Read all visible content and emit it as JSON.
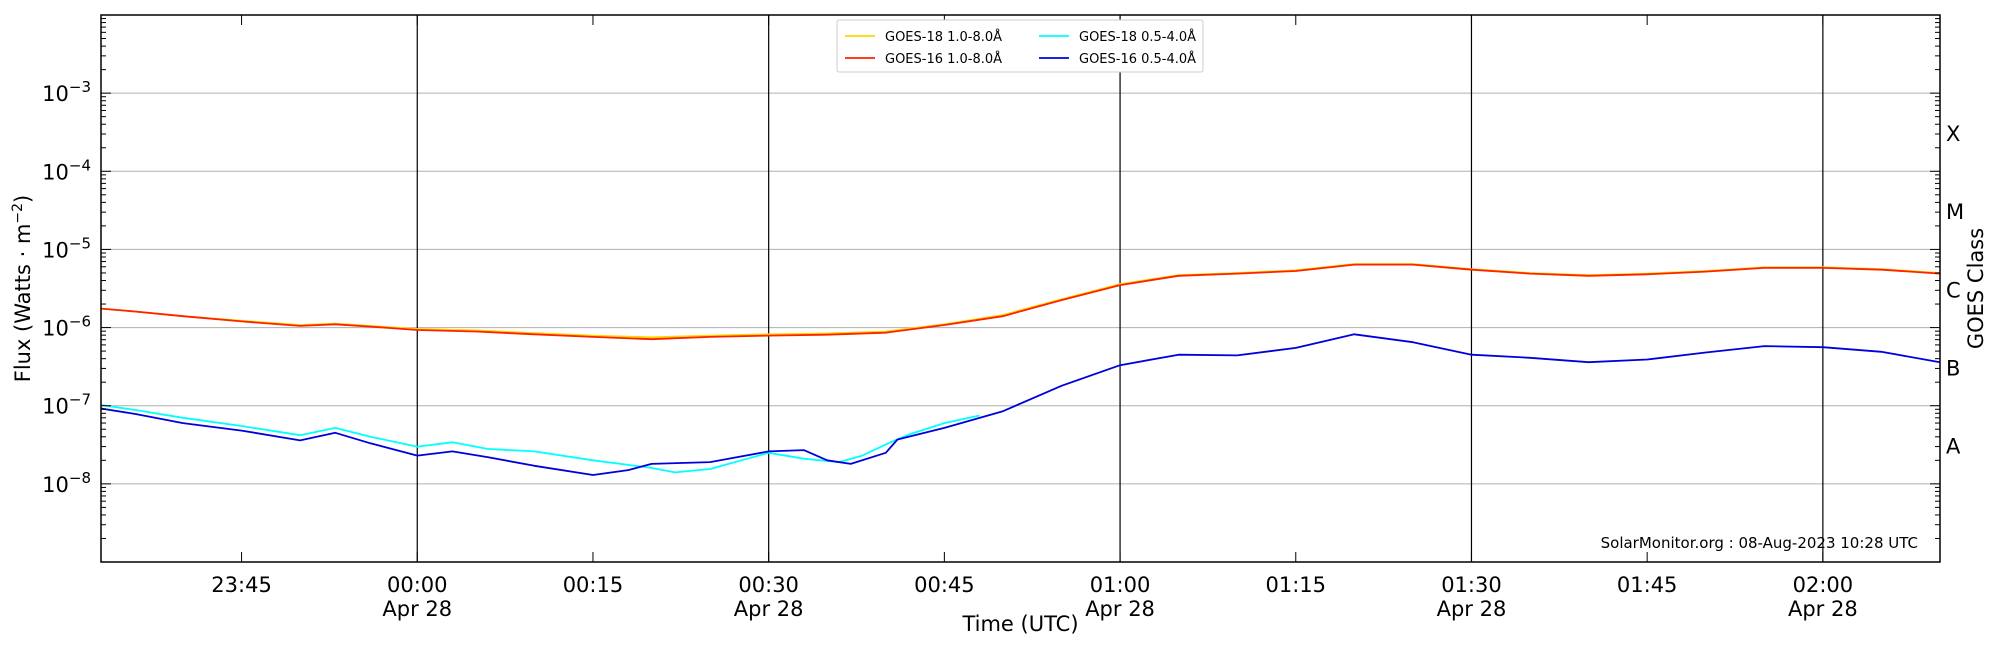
{
  "chart_data": {
    "type": "line",
    "title": "",
    "xlabel": "Time (UTC)",
    "ylabel": "Flux (Watts · m",
    "ylabel_sup": "−2",
    "ylabel_close": ")",
    "ylabel_right": "GOES Class",
    "yscale": "log",
    "ylim": [
      1e-09,
      0.01
    ],
    "xlim": [
      "2023-04-27T23:33:00",
      "2023-04-28T02:10:00"
    ],
    "y_ticks": [
      {
        "value": 1e-08,
        "base": "10",
        "exp": "−8"
      },
      {
        "value": 1e-07,
        "base": "10",
        "exp": "−7"
      },
      {
        "value": 1e-06,
        "base": "10",
        "exp": "−6"
      },
      {
        "value": 1e-05,
        "base": "10",
        "exp": "−5"
      },
      {
        "value": 0.0001,
        "base": "10",
        "exp": "−4"
      },
      {
        "value": 0.001,
        "base": "10",
        "exp": "−3"
      }
    ],
    "x_ticks": [
      {
        "t": "2023-04-27T23:45:00",
        "label": "23:45",
        "sub": ""
      },
      {
        "t": "2023-04-28T00:00:00",
        "label": "00:00",
        "sub": "Apr 28"
      },
      {
        "t": "2023-04-28T00:15:00",
        "label": "00:15",
        "sub": ""
      },
      {
        "t": "2023-04-28T00:30:00",
        "label": "00:30",
        "sub": "Apr 28"
      },
      {
        "t": "2023-04-28T00:45:00",
        "label": "00:45",
        "sub": ""
      },
      {
        "t": "2023-04-28T01:00:00",
        "label": "01:00",
        "sub": "Apr 28"
      },
      {
        "t": "2023-04-28T01:15:00",
        "label": "01:15",
        "sub": ""
      },
      {
        "t": "2023-04-28T01:30:00",
        "label": "01:30",
        "sub": "Apr 28"
      },
      {
        "t": "2023-04-28T01:45:00",
        "label": "01:45",
        "sub": ""
      },
      {
        "t": "2023-04-28T02:00:00",
        "label": "02:00",
        "sub": "Apr 28"
      }
    ],
    "vlines": [
      "2023-04-28T00:00:00",
      "2023-04-28T00:30:00",
      "2023-04-28T01:00:00",
      "2023-04-28T01:30:00",
      "2023-04-28T02:00:00"
    ],
    "grid": "horizontal",
    "goes_classes": [
      {
        "label": "A",
        "value": 3e-08
      },
      {
        "label": "B",
        "value": 3e-07
      },
      {
        "label": "C",
        "value": 3e-06
      },
      {
        "label": "M",
        "value": 3e-05
      },
      {
        "label": "X",
        "value": 0.0003
      }
    ],
    "legend": {
      "placement": "top-center"
    },
    "credit": "SolarMonitor.org : 08-Aug-2023 10:28 UTC",
    "series": [
      {
        "name": "GOES-18 1.0-8.0Å",
        "color": "#ffd700",
        "points": [
          [
            "2023-04-27T23:33:00",
            1.75e-06
          ],
          [
            "2023-04-27T23:36:00",
            1.6e-06
          ],
          [
            "2023-04-27T23:40:00",
            1.4e-06
          ],
          [
            "2023-04-27T23:45:00",
            1.22e-06
          ],
          [
            "2023-04-27T23:50:00",
            1.08e-06
          ],
          [
            "2023-04-27T23:53:00",
            1.12e-06
          ],
          [
            "2023-04-27T23:56:00",
            1.05e-06
          ],
          [
            "2023-04-28T00:00:00",
            9.6e-07
          ],
          [
            "2023-04-28T00:05:00",
            9.2e-07
          ],
          [
            "2023-04-28T00:10:00",
            8.5e-07
          ],
          [
            "2023-04-28T00:15:00",
            7.9e-07
          ],
          [
            "2023-04-28T00:20:00",
            7.5e-07
          ],
          [
            "2023-04-28T00:25:00",
            7.9e-07
          ],
          [
            "2023-04-28T00:30:00",
            8.2e-07
          ],
          [
            "2023-04-28T00:35:00",
            8.4e-07
          ],
          [
            "2023-04-28T00:40:00",
            8.9e-07
          ],
          [
            "2023-04-28T00:45:00",
            1.1e-06
          ],
          [
            "2023-04-28T00:50:00",
            1.45e-06
          ],
          [
            "2023-04-28T00:55:00",
            2.3e-06
          ],
          [
            "2023-04-28T01:00:00",
            3.6e-06
          ],
          [
            "2023-04-28T01:05:00",
            4.7e-06
          ],
          [
            "2023-04-28T01:10:00",
            5e-06
          ],
          [
            "2023-04-28T01:15:00",
            5.4e-06
          ],
          [
            "2023-04-28T01:20:00",
            6.5e-06
          ],
          [
            "2023-04-28T01:25:00",
            6.5e-06
          ],
          [
            "2023-04-28T01:30:00",
            5.6e-06
          ],
          [
            "2023-04-28T01:35:00",
            5e-06
          ],
          [
            "2023-04-28T01:40:00",
            4.7e-06
          ],
          [
            "2023-04-28T01:45:00",
            4.9e-06
          ],
          [
            "2023-04-28T01:50:00",
            5.3e-06
          ],
          [
            "2023-04-28T01:55:00",
            5.9e-06
          ],
          [
            "2023-04-28T02:00:00",
            5.9e-06
          ],
          [
            "2023-04-28T02:05:00",
            5.6e-06
          ],
          [
            "2023-04-28T02:10:00",
            5e-06
          ]
        ]
      },
      {
        "name": "GOES-16 1.0-8.0Å",
        "color": "#ff2200",
        "points": [
          [
            "2023-04-27T23:33:00",
            1.75e-06
          ],
          [
            "2023-04-27T23:36:00",
            1.6e-06
          ],
          [
            "2023-04-27T23:40:00",
            1.4e-06
          ],
          [
            "2023-04-27T23:45:00",
            1.2e-06
          ],
          [
            "2023-04-27T23:50:00",
            1.05e-06
          ],
          [
            "2023-04-27T23:53:00",
            1.1e-06
          ],
          [
            "2023-04-27T23:56:00",
            1.03e-06
          ],
          [
            "2023-04-28T00:00:00",
            9.3e-07
          ],
          [
            "2023-04-28T00:05:00",
            8.9e-07
          ],
          [
            "2023-04-28T00:10:00",
            8.2e-07
          ],
          [
            "2023-04-28T00:15:00",
            7.6e-07
          ],
          [
            "2023-04-28T00:20:00",
            7.1e-07
          ],
          [
            "2023-04-28T00:25:00",
            7.6e-07
          ],
          [
            "2023-04-28T00:30:00",
            7.9e-07
          ],
          [
            "2023-04-28T00:35:00",
            8.1e-07
          ],
          [
            "2023-04-28T00:40:00",
            8.6e-07
          ],
          [
            "2023-04-28T00:45:00",
            1.08e-06
          ],
          [
            "2023-04-28T00:50:00",
            1.4e-06
          ],
          [
            "2023-04-28T00:55:00",
            2.25e-06
          ],
          [
            "2023-04-28T01:00:00",
            3.5e-06
          ],
          [
            "2023-04-28T01:05:00",
            4.6e-06
          ],
          [
            "2023-04-28T01:10:00",
            4.9e-06
          ],
          [
            "2023-04-28T01:15:00",
            5.3e-06
          ],
          [
            "2023-04-28T01:20:00",
            6.4e-06
          ],
          [
            "2023-04-28T01:25:00",
            6.4e-06
          ],
          [
            "2023-04-28T01:30:00",
            5.5e-06
          ],
          [
            "2023-04-28T01:35:00",
            4.9e-06
          ],
          [
            "2023-04-28T01:40:00",
            4.6e-06
          ],
          [
            "2023-04-28T01:45:00",
            4.8e-06
          ],
          [
            "2023-04-28T01:50:00",
            5.2e-06
          ],
          [
            "2023-04-28T01:55:00",
            5.8e-06
          ],
          [
            "2023-04-28T02:00:00",
            5.8e-06
          ],
          [
            "2023-04-28T02:05:00",
            5.5e-06
          ],
          [
            "2023-04-28T02:10:00",
            4.9e-06
          ]
        ]
      },
      {
        "name": "GOES-18 0.5-4.0Å",
        "color": "#00ffff",
        "points": [
          [
            "2023-04-27T23:33:00",
            1.02e-07
          ],
          [
            "2023-04-27T23:36:00",
            8.8e-08
          ],
          [
            "2023-04-27T23:40:00",
            7e-08
          ],
          [
            "2023-04-27T23:45:00",
            5.5e-08
          ],
          [
            "2023-04-27T23:50:00",
            4.2e-08
          ],
          [
            "2023-04-27T23:53:00",
            5.2e-08
          ],
          [
            "2023-04-27T23:56:00",
            4e-08
          ],
          [
            "2023-04-28T00:00:00",
            3e-08
          ],
          [
            "2023-04-28T00:03:00",
            3.4e-08
          ],
          [
            "2023-04-28T00:06:00",
            2.8e-08
          ],
          [
            "2023-04-28T00:10:00",
            2.6e-08
          ],
          [
            "2023-04-28T00:15:00",
            2e-08
          ],
          [
            "2023-04-28T00:20:00",
            1.6e-08
          ],
          [
            "2023-04-28T00:22:00",
            1.4e-08
          ],
          [
            "2023-04-28T00:25:00",
            1.55e-08
          ],
          [
            "2023-04-28T00:30:00",
            2.5e-08
          ],
          [
            "2023-04-28T00:33:00",
            2.1e-08
          ],
          [
            "2023-04-28T00:36:00",
            1.9e-08
          ],
          [
            "2023-04-28T00:38:00",
            2.3e-08
          ],
          [
            "2023-04-28T00:40:00",
            3.2e-08
          ],
          [
            "2023-04-28T00:42:00",
            4.3e-08
          ],
          [
            "2023-04-28T00:45:00",
            6e-08
          ],
          [
            "2023-04-28T00:48:00",
            7.5e-08
          ]
        ]
      },
      {
        "name": "GOES-16 0.5-4.0Å",
        "color": "#0000dd",
        "points": [
          [
            "2023-04-27T23:33:00",
            9.2e-08
          ],
          [
            "2023-04-27T23:36:00",
            7.8e-08
          ],
          [
            "2023-04-27T23:40:00",
            6e-08
          ],
          [
            "2023-04-27T23:45:00",
            4.8e-08
          ],
          [
            "2023-04-27T23:50:00",
            3.6e-08
          ],
          [
            "2023-04-27T23:53:00",
            4.5e-08
          ],
          [
            "2023-04-27T23:56:00",
            3.3e-08
          ],
          [
            "2023-04-28T00:00:00",
            2.3e-08
          ],
          [
            "2023-04-28T00:03:00",
            2.6e-08
          ],
          [
            "2023-04-28T00:06:00",
            2.2e-08
          ],
          [
            "2023-04-28T00:10:00",
            1.7e-08
          ],
          [
            "2023-04-28T00:15:00",
            1.3e-08
          ],
          [
            "2023-04-28T00:18:00",
            1.5e-08
          ],
          [
            "2023-04-28T00:20:00",
            1.8e-08
          ],
          [
            "2023-04-28T00:25:00",
            1.9e-08
          ],
          [
            "2023-04-28T00:30:00",
            2.6e-08
          ],
          [
            "2023-04-28T00:33:00",
            2.7e-08
          ],
          [
            "2023-04-28T00:35:00",
            2e-08
          ],
          [
            "2023-04-28T00:37:00",
            1.8e-08
          ],
          [
            "2023-04-28T00:40:00",
            2.5e-08
          ],
          [
            "2023-04-28T00:41:00",
            3.7e-08
          ],
          [
            "2023-04-28T00:45:00",
            5.2e-08
          ],
          [
            "2023-04-28T00:50:00",
            8.5e-08
          ],
          [
            "2023-04-28T00:55:00",
            1.8e-07
          ],
          [
            "2023-04-28T01:00:00",
            3.3e-07
          ],
          [
            "2023-04-28T01:05:00",
            4.5e-07
          ],
          [
            "2023-04-28T01:10:00",
            4.4e-07
          ],
          [
            "2023-04-28T01:15:00",
            5.5e-07
          ],
          [
            "2023-04-28T01:20:00",
            8.2e-07
          ],
          [
            "2023-04-28T01:25:00",
            6.5e-07
          ],
          [
            "2023-04-28T01:30:00",
            4.5e-07
          ],
          [
            "2023-04-28T01:35:00",
            4.1e-07
          ],
          [
            "2023-04-28T01:40:00",
            3.6e-07
          ],
          [
            "2023-04-28T01:45:00",
            3.9e-07
          ],
          [
            "2023-04-28T01:50:00",
            4.8e-07
          ],
          [
            "2023-04-28T01:55:00",
            5.8e-07
          ],
          [
            "2023-04-28T02:00:00",
            5.6e-07
          ],
          [
            "2023-04-28T02:05:00",
            4.9e-07
          ],
          [
            "2023-04-28T02:10:00",
            3.6e-07
          ]
        ]
      }
    ]
  }
}
